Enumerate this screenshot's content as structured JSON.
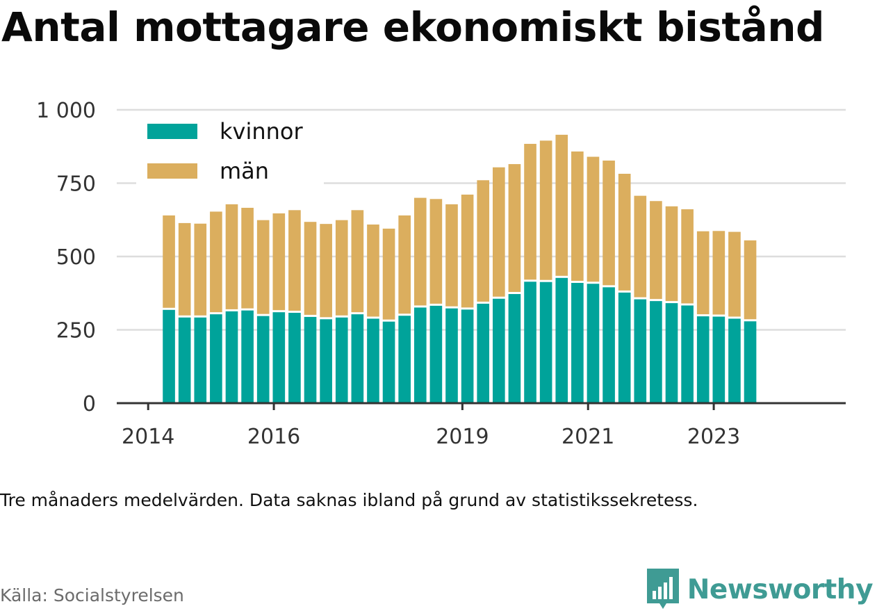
{
  "title": "Antal mottagare ekonomiskt bistånd",
  "note": "Tre månaders medelvärden. Data saknas ibland på grund av statistikssekretess.",
  "source": "Källa: Socialstyrelsen",
  "brand": {
    "name": "Newsworthy",
    "logo_icon": "newsworthy-bar-chart-logo",
    "color": "#3f9b94"
  },
  "colors": {
    "kvinnor": "#00a39a",
    "man": "#dbae5e",
    "grid": "#dddddd",
    "axis": "#333333"
  },
  "chart_data": {
    "type": "bar",
    "stacked": true,
    "title": "",
    "xlabel": "",
    "ylabel": "",
    "ylim": [
      0,
      1000
    ],
    "yticks": [
      0,
      250,
      500,
      750,
      1000
    ],
    "ytick_labels": [
      "0",
      "250",
      "500",
      "750",
      "1 000"
    ],
    "xticks": [
      {
        "x": 2014.0,
        "label": "2014"
      },
      {
        "x": 2016.0,
        "label": "2016"
      },
      {
        "x": 2019.0,
        "label": "2019"
      },
      {
        "x": 2021.0,
        "label": "2021"
      },
      {
        "x": 2023.0,
        "label": "2023"
      }
    ],
    "xlim": [
      2013.5,
      2025.1
    ],
    "grid": true,
    "legend_position": "top-left",
    "x": [
      2014.33,
      2014.58,
      2014.83,
      2015.08,
      2015.33,
      2015.58,
      2015.83,
      2016.08,
      2016.33,
      2016.58,
      2016.83,
      2017.08,
      2017.33,
      2017.58,
      2017.83,
      2018.08,
      2018.33,
      2018.58,
      2018.83,
      2019.08,
      2019.33,
      2019.58,
      2019.83,
      2020.08,
      2020.33,
      2020.58,
      2020.83,
      2021.08,
      2021.33,
      2021.58,
      2021.83,
      2022.08,
      2022.33,
      2022.58,
      2022.83,
      2023.08,
      2023.33,
      2023.58
    ],
    "series": [
      {
        "name": "kvinnor",
        "values": [
          318,
          292,
          292,
          303,
          313,
          316,
          297,
          310,
          308,
          294,
          286,
          292,
          303,
          288,
          278,
          298,
          326,
          332,
          323,
          319,
          339,
          356,
          372,
          414,
          413,
          427,
          410,
          407,
          395,
          377,
          354,
          348,
          341,
          333,
          296,
          295,
          288,
          279
        ]
      },
      {
        "name": "män",
        "values": [
          322,
          322,
          320,
          350,
          365,
          350,
          327,
          337,
          350,
          324,
          325,
          332,
          355,
          321,
          317,
          342,
          374,
          364,
          355,
          392,
          421,
          448,
          443,
          470,
          482,
          488,
          448,
          433,
          432,
          405,
          353,
          341,
          330,
          328,
          290,
          292,
          296,
          276
        ]
      }
    ]
  }
}
